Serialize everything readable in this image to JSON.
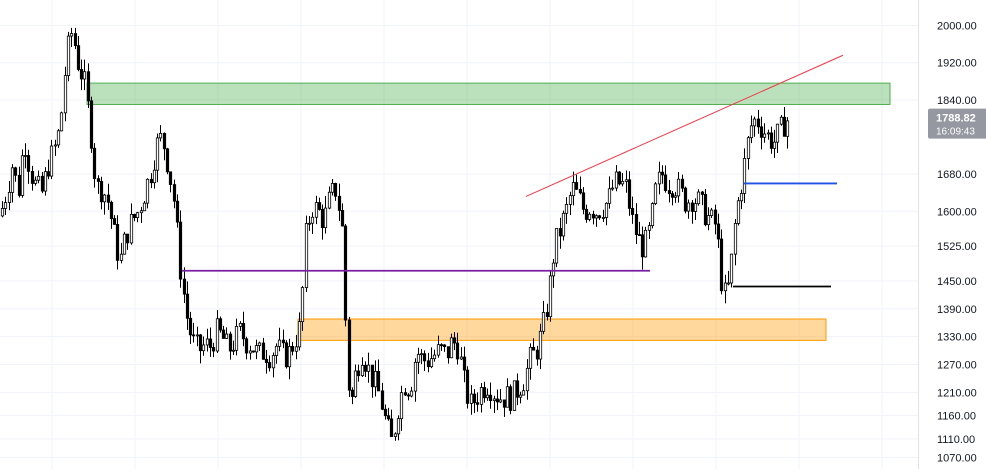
{
  "chart_data": {
    "type": "candlestick",
    "title": "",
    "xlabel": "",
    "ylabel": "",
    "grid": true,
    "ylim": [
      1045,
      2055
    ],
    "y_axis_position": "right",
    "y_ticks": [
      "2000.00",
      "1920.00",
      "1840.00",
      "1680.00",
      "1600.00",
      "1525.00",
      "1450.00",
      "1390.00",
      "1330.00",
      "1270.00",
      "1210.00",
      "1160.00",
      "1110.00",
      "1070.00"
    ],
    "last_price": {
      "price": "1788.82",
      "countdown": "16:09:43"
    },
    "colors": {
      "candle": "#000000",
      "grid": "#f0f3fa",
      "axis_text": "#131722",
      "price_label_bg": "#9598a1",
      "price_label_text": "#ffffff",
      "resistance_zone": "#4caf50",
      "support_zone": "#ff9800",
      "trendline": "#f23645",
      "purple_level": "#7b1fa2",
      "blue_level": "#1e53e5",
      "black_level": "#000000"
    },
    "price_path": [
      [
        0,
        1590
      ],
      [
        6,
        1640
      ],
      [
        12,
        1700
      ],
      [
        18,
        1640
      ],
      [
        24,
        1760
      ],
      [
        30,
        1690
      ],
      [
        36,
        1650
      ],
      [
        42,
        1640
      ],
      [
        48,
        1700
      ],
      [
        54,
        1730
      ],
      [
        60,
        1780
      ],
      [
        66,
        1930
      ],
      [
        72,
        1990
      ],
      [
        78,
        1920
      ],
      [
        84,
        1880
      ],
      [
        90,
        1790
      ],
      [
        96,
        1650
      ],
      [
        102,
        1650
      ],
      [
        108,
        1620
      ],
      [
        114,
        1550
      ],
      [
        120,
        1490
      ],
      [
        126,
        1550
      ],
      [
        132,
        1580
      ],
      [
        138,
        1600
      ],
      [
        144,
        1640
      ],
      [
        150,
        1680
      ],
      [
        156,
        1740
      ],
      [
        162,
        1760
      ],
      [
        168,
        1700
      ],
      [
        174,
        1620
      ],
      [
        180,
        1480
      ],
      [
        186,
        1380
      ],
      [
        192,
        1320
      ],
      [
        198,
        1300
      ],
      [
        204,
        1310
      ],
      [
        210,
        1310
      ],
      [
        216,
        1340
      ],
      [
        222,
        1330
      ],
      [
        228,
        1300
      ],
      [
        234,
        1320
      ],
      [
        240,
        1340
      ],
      [
        246,
        1320
      ],
      [
        252,
        1310
      ],
      [
        258,
        1290
      ],
      [
        264,
        1300
      ],
      [
        270,
        1290
      ],
      [
        276,
        1310
      ],
      [
        282,
        1290
      ],
      [
        288,
        1290
      ],
      [
        294,
        1320
      ],
      [
        300,
        1350
      ],
      [
        306,
        1560
      ],
      [
        312,
        1610
      ],
      [
        318,
        1600
      ],
      [
        324,
        1580
      ],
      [
        330,
        1630
      ],
      [
        336,
        1650
      ],
      [
        342,
        1560
      ],
      [
        346,
        1320
      ],
      [
        350,
        1170
      ],
      [
        356,
        1260
      ],
      [
        362,
        1300
      ],
      [
        368,
        1260
      ],
      [
        374,
        1230
      ],
      [
        380,
        1200
      ],
      [
        386,
        1140
      ],
      [
        392,
        1100
      ],
      [
        398,
        1180
      ],
      [
        404,
        1230
      ],
      [
        410,
        1220
      ],
      [
        416,
        1300
      ],
      [
        422,
        1280
      ],
      [
        428,
        1280
      ],
      [
        434,
        1290
      ],
      [
        440,
        1300
      ],
      [
        446,
        1290
      ],
      [
        452,
        1320
      ],
      [
        458,
        1310
      ],
      [
        464,
        1230
      ],
      [
        470,
        1180
      ],
      [
        476,
        1200
      ],
      [
        482,
        1220
      ],
      [
        488,
        1230
      ],
      [
        494,
        1210
      ],
      [
        500,
        1200
      ],
      [
        506,
        1200
      ],
      [
        512,
        1200
      ],
      [
        518,
        1220
      ],
      [
        524,
        1240
      ],
      [
        530,
        1280
      ],
      [
        536,
        1300
      ],
      [
        542,
        1340
      ],
      [
        548,
        1410
      ],
      [
        554,
        1520
      ],
      [
        560,
        1560
      ],
      [
        566,
        1600
      ],
      [
        572,
        1650
      ],
      [
        578,
        1630
      ],
      [
        584,
        1600
      ],
      [
        590,
        1610
      ],
      [
        596,
        1600
      ],
      [
        602,
        1610
      ],
      [
        608,
        1620
      ],
      [
        614,
        1660
      ],
      [
        620,
        1660
      ],
      [
        626,
        1650
      ],
      [
        632,
        1580
      ],
      [
        638,
        1540
      ],
      [
        644,
        1520
      ],
      [
        650,
        1560
      ],
      [
        656,
        1650
      ],
      [
        662,
        1680
      ],
      [
        668,
        1660
      ],
      [
        674,
        1660
      ],
      [
        680,
        1640
      ],
      [
        686,
        1620
      ],
      [
        692,
        1630
      ],
      [
        698,
        1620
      ],
      [
        704,
        1600
      ],
      [
        710,
        1580
      ],
      [
        716,
        1570
      ],
      [
        722,
        1440
      ],
      [
        726,
        1410
      ],
      [
        730,
        1460
      ],
      [
        734,
        1560
      ],
      [
        738,
        1620
      ],
      [
        742,
        1670
      ],
      [
        746,
        1720
      ],
      [
        750,
        1780
      ],
      [
        756,
        1800
      ],
      [
        762,
        1780
      ],
      [
        768,
        1760
      ],
      [
        774,
        1750
      ],
      [
        780,
        1770
      ],
      [
        786,
        1800
      ],
      [
        790,
        1790
      ]
    ],
    "annotations": [
      {
        "kind": "zone",
        "name": "resistance-zone",
        "x1": 87,
        "x2": 890,
        "y1": 1830,
        "y2": 1876
      },
      {
        "kind": "zone",
        "name": "support-zone",
        "x1": 298,
        "x2": 826,
        "y1": 1322,
        "y2": 1368
      },
      {
        "kind": "line",
        "name": "rising-trendline",
        "x1": 526,
        "x2": 843,
        "y1": 1632,
        "y2": 1936
      },
      {
        "kind": "line",
        "name": "purple-level-line",
        "x1": 182,
        "x2": 650,
        "y1": 1472,
        "y2": 1472
      },
      {
        "kind": "line",
        "name": "blue-level-line",
        "x1": 744,
        "x2": 837,
        "y1": 1660,
        "y2": 1660
      },
      {
        "kind": "line",
        "name": "black-level-line",
        "x1": 733,
        "x2": 831,
        "y1": 1438,
        "y2": 1438
      }
    ]
  }
}
